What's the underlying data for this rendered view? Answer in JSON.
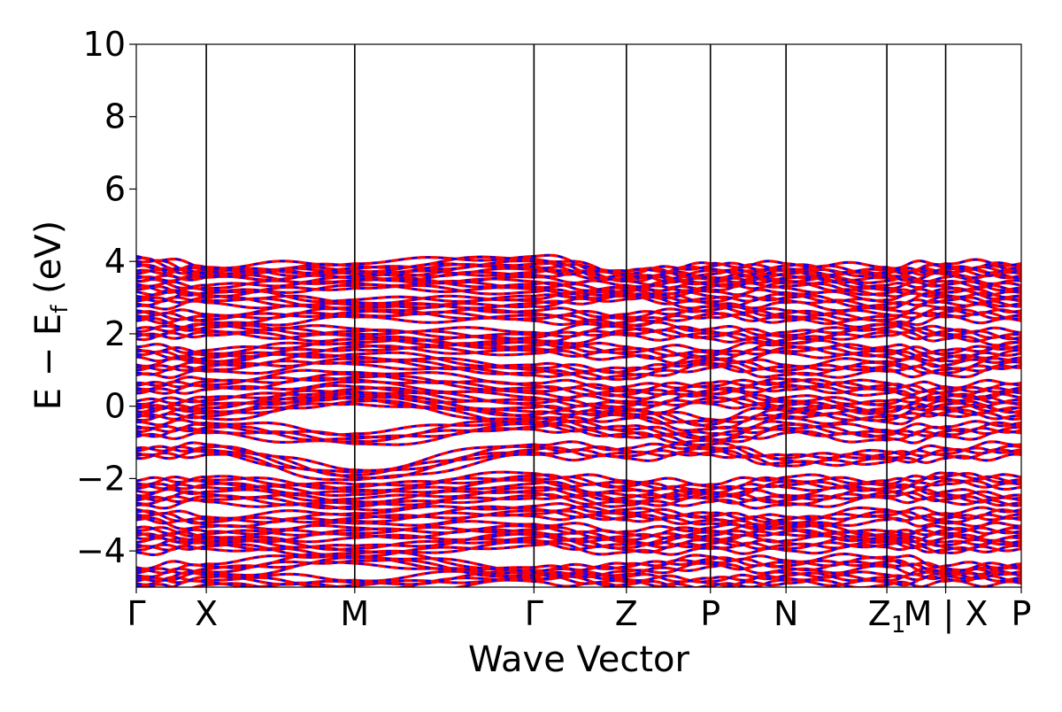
{
  "chart_data": {
    "type": "line",
    "title": "",
    "xlabel": "Wave Vector",
    "ylabel": {
      "main": "E − E",
      "sub": "f",
      "unit": " (eV)"
    },
    "ylim": [
      -5,
      10
    ],
    "yticks": [
      -4,
      -2,
      0,
      2,
      4,
      6,
      8,
      10
    ],
    "ytick_labels": [
      "−4",
      "−2",
      "0",
      "2",
      "4",
      "6",
      "8",
      "10"
    ],
    "kpath_labels": [
      "Γ",
      "X",
      "M",
      "Γ",
      "Z",
      "P",
      "N",
      "Z",
      "M | X",
      "P"
    ],
    "kpath_subscripts": [
      "",
      "",
      "",
      "",
      "",
      "",
      "",
      "1",
      "",
      ""
    ],
    "kpath_positions": [
      0.0,
      0.25,
      0.78,
      1.42,
      1.75,
      2.05,
      2.32,
      2.68,
      2.89,
      3.16
    ],
    "grid": false,
    "legend": "none",
    "series": [
      {
        "line_color": "#ff0000",
        "overlay_color": "#0000ff",
        "style": "dashed-overlay"
      }
    ],
    "bands_estimated": [
      {
        "values": [
          -4.9,
          -4.8,
          -4.95,
          -4.7,
          -4.85,
          -4.9,
          -4.75,
          -4.8,
          -4.7,
          -4.75
        ]
      },
      {
        "values": [
          -4.6,
          -4.5,
          -4.2,
          -4.6,
          -4.5,
          -4.3,
          -4.4,
          -4.3,
          -4.55,
          -4.5
        ]
      },
      {
        "values": [
          -3.9,
          -3.8,
          -4.0,
          -3.7,
          -3.9,
          -3.8,
          -3.85,
          -3.75,
          -3.9,
          -3.8
        ]
      },
      {
        "values": [
          -3.5,
          -3.6,
          -3.5,
          -3.4,
          -3.6,
          -3.5,
          -3.4,
          -3.6,
          -3.5,
          -3.45
        ]
      },
      {
        "values": [
          -3.0,
          -3.2,
          -3.1,
          -2.9,
          -3.0,
          -3.1,
          -3.2,
          -3.0,
          -3.1,
          -3.0
        ]
      },
      {
        "values": [
          -2.6,
          -2.5,
          -2.7,
          -2.4,
          -2.6,
          -2.5,
          -2.6,
          -2.4,
          -2.5,
          -2.6
        ]
      },
      {
        "values": [
          -2.2,
          -2.1,
          -2.3,
          -2.0,
          -2.2,
          -2.3,
          -2.1,
          -2.2,
          -2.0,
          -2.1
        ]
      },
      {
        "values": [
          -1.3,
          -1.2,
          -1.9,
          -1.2,
          -1.3,
          -1.2,
          -1.5,
          -1.4,
          -1.3,
          -1.2
        ]
      },
      {
        "values": [
          -0.7,
          -0.6,
          -0.9,
          -0.5,
          -0.7,
          -0.9,
          -0.6,
          -0.8,
          -0.7,
          -0.6
        ]
      },
      {
        "values": [
          -0.3,
          -0.2,
          0.2,
          -0.3,
          -0.2,
          -0.5,
          -0.2,
          -0.3,
          -0.1,
          -0.2
        ]
      },
      {
        "values": [
          0.0,
          0.1,
          0.4,
          0.1,
          0.0,
          0.2,
          0.1,
          0.0,
          0.2,
          0.1
        ]
      },
      {
        "values": [
          0.5,
          0.6,
          0.8,
          0.5,
          0.4,
          0.5,
          0.6,
          0.5,
          0.4,
          0.5
        ]
      },
      {
        "values": [
          1.0,
          1.1,
          1.3,
          1.0,
          0.9,
          1.2,
          1.0,
          1.1,
          1.0,
          1.2
        ]
      },
      {
        "values": [
          1.5,
          1.4,
          1.7,
          1.6,
          1.5,
          1.4,
          1.6,
          1.5,
          1.4,
          1.6
        ]
      },
      {
        "values": [
          2.0,
          2.1,
          2.0,
          1.9,
          2.1,
          2.0,
          1.9,
          2.1,
          2.0,
          1.9
        ]
      },
      {
        "values": [
          2.5,
          2.4,
          2.6,
          2.5,
          2.4,
          2.6,
          2.5,
          2.4,
          2.6,
          2.5
        ]
      },
      {
        "values": [
          2.9,
          3.0,
          2.8,
          2.9,
          3.1,
          2.9,
          3.0,
          2.8,
          3.0,
          2.9
        ]
      },
      {
        "values": [
          3.3,
          3.2,
          3.4,
          3.3,
          3.2,
          3.3,
          3.4,
          3.2,
          3.3,
          3.2
        ]
      },
      {
        "values": [
          3.6,
          3.7,
          3.6,
          3.7,
          3.6,
          3.5,
          3.6,
          3.6,
          3.7,
          3.6
        ]
      },
      {
        "values": [
          4.0,
          3.7,
          3.8,
          4.0,
          3.6,
          3.8,
          3.8,
          3.7,
          3.8,
          3.8
        ]
      }
    ]
  }
}
